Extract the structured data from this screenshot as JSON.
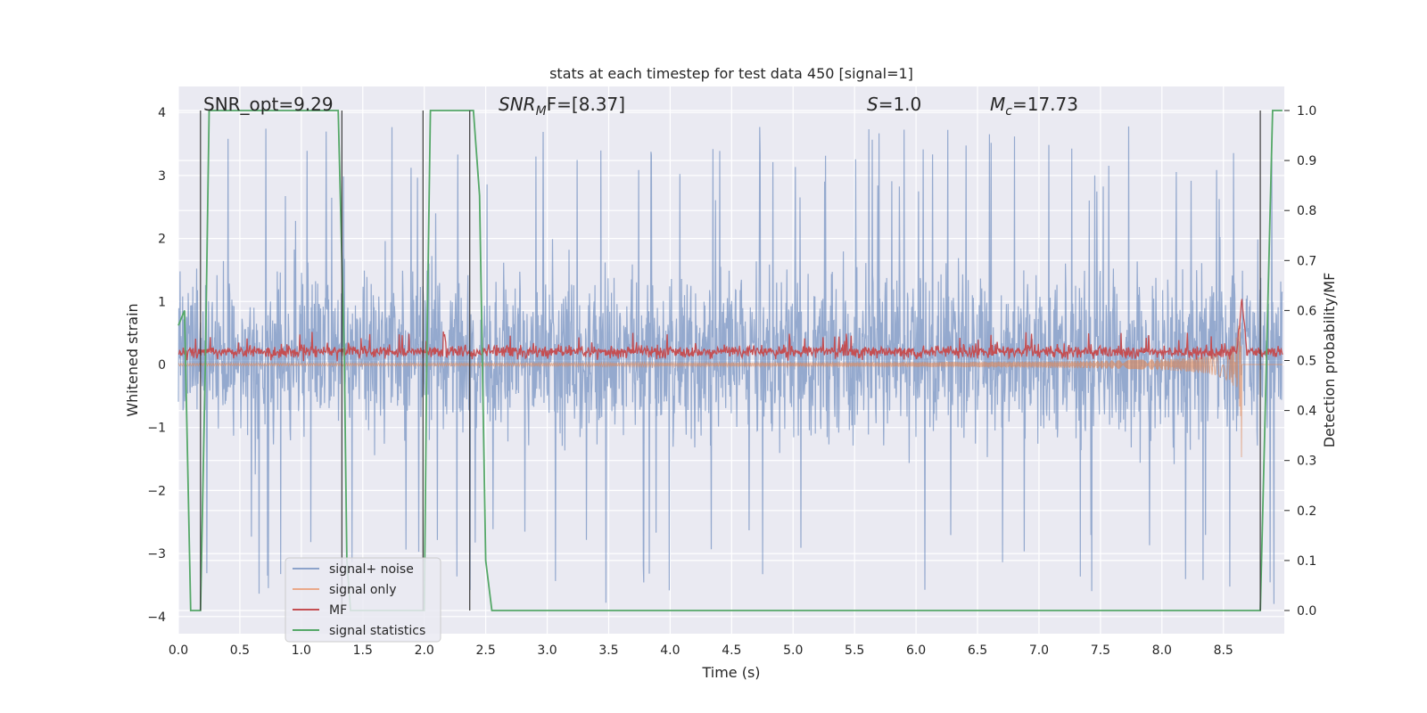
{
  "chart_data": {
    "type": "line",
    "title": "stats at each timestep for test data 450 [signal=1]",
    "xlabel": "Time (s)",
    "ylabel_left": "Whitened strain",
    "ylabel_right": "Detection probability/MF",
    "xlim": [
      0.0,
      8.98
    ],
    "ylim_left": [
      -4.4,
      4.4
    ],
    "ylim_right": [
      -0.05,
      1.05
    ],
    "xticks": [
      "0.0",
      "0.5",
      "1.0",
      "1.5",
      "2.0",
      "2.5",
      "3.0",
      "3.5",
      "4.0",
      "4.5",
      "5.0",
      "5.5",
      "6.0",
      "6.5",
      "7.0",
      "7.5",
      "8.0",
      "8.5"
    ],
    "yticks_left": [
      "−4",
      "−3",
      "−2",
      "−1",
      "0",
      "1",
      "2",
      "3",
      "4"
    ],
    "yticks_right": [
      "0.0",
      "0.1",
      "0.2",
      "0.3",
      "0.4",
      "0.5",
      "0.6",
      "0.7",
      "0.8",
      "0.9",
      "1.0"
    ],
    "grid": true,
    "legend_position": "lower-left",
    "annotations": {
      "snr_opt": "SNR_opt=9.29",
      "snr_mf_main": "SNR",
      "snr_mf_sub": "M",
      "snr_mf_rest": "F=[8.37]",
      "s_main": "S",
      "s_rest": "=1.0",
      "mc_main": "M",
      "mc_sub": "c",
      "mc_rest": "=17.73"
    },
    "series": [
      {
        "name": "signal+ noise",
        "color": "#4c72b0",
        "description_axis": "left",
        "amplitude_envelope": [
          -3.7,
          4.0
        ]
      },
      {
        "name": "signal only",
        "color": "#dd8452",
        "axis": "left",
        "chirp_peak_time": 8.65,
        "chirp_peak_amplitude": 1.85
      },
      {
        "name": "MF",
        "color": "#c44e52",
        "axis": "left",
        "baseline": 0.2,
        "peak_time": 8.65,
        "peak_value": 1.05
      },
      {
        "name": "signal statistics",
        "color": "#55a868",
        "axis": "right",
        "x": [
          0.0,
          0.05,
          0.1,
          0.18,
          0.22,
          0.25,
          1.3,
          1.35,
          1.37,
          1.4,
          1.5,
          2.0,
          2.02,
          2.05,
          2.08,
          2.15,
          2.2,
          2.4,
          2.45,
          2.5,
          2.55,
          2.6,
          2.8,
          3.0,
          4.0,
          5.0,
          6.0,
          7.0,
          8.0,
          8.8,
          8.85,
          8.9,
          8.95,
          8.98
        ],
        "y": [
          0.57,
          0.6,
          0.0,
          0.0,
          0.5,
          1.0,
          1.0,
          0.5,
          0.1,
          0.0,
          0.0,
          0.0,
          0.5,
          1.0,
          1.0,
          1.0,
          1.0,
          1.0,
          0.83,
          0.1,
          0.0,
          0.0,
          0.0,
          0.0,
          0.0,
          0.0,
          0.0,
          0.0,
          0.0,
          0.0,
          0.5,
          1.0,
          1.0,
          1.0
        ]
      }
    ],
    "vertical_markers": [
      0.18,
      1.33,
      1.99,
      2.37,
      8.8
    ]
  }
}
